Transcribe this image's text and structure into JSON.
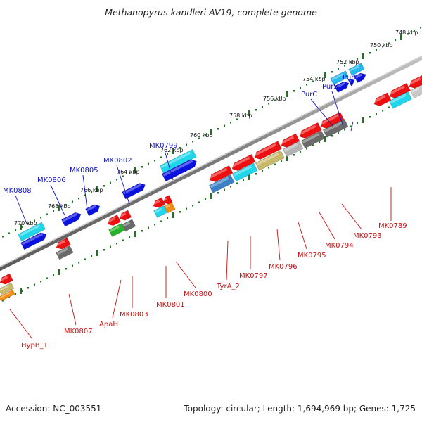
{
  "title": "Methanopyrus kandleri AV19, complete genome",
  "footer": {
    "accession": "Accession: NC_003551",
    "summary": "Topology: circular; Length: 1,694,969 bp; Genes: 1,725"
  },
  "colors": {
    "forward_gene": "#0a12e0",
    "reverse_gene": "#ee1010",
    "forward_label": "#1010cc",
    "reverse_label": "#cc1010",
    "backbone": "#808080",
    "tick": "#1a7a1a",
    "cyan_feature": "#1fd6ea",
    "blue_feature": "#3b7fc4",
    "gray_feature": "#6a6a6a",
    "olive_feature": "#c8b86a",
    "orange_feature": "#f08c10",
    "green_feature": "#28b428"
  },
  "coordinate_labels": [
    "748 kbp",
    "750 kbp",
    "752 kbp",
    "754 kbp",
    "756 kbp",
    "758 kbp",
    "760 kbp",
    "762 kbp",
    "764 kbp",
    "766 kbp",
    "768 kbp",
    "770 kbp"
  ],
  "forward_genes": [
    "PurL_1",
    "PurS",
    "PurC",
    "MK0799",
    "MK0802",
    "MK0805",
    "MK0806",
    "MK0808"
  ],
  "reverse_genes": [
    "MK0789",
    "MK0793",
    "MK0794",
    "MK0795",
    "MK0796",
    "MK0797",
    "TyrA_2",
    "MK0800",
    "MK0801",
    "MK0803",
    "ApaH",
    "MK0807",
    "HypB_1"
  ]
}
